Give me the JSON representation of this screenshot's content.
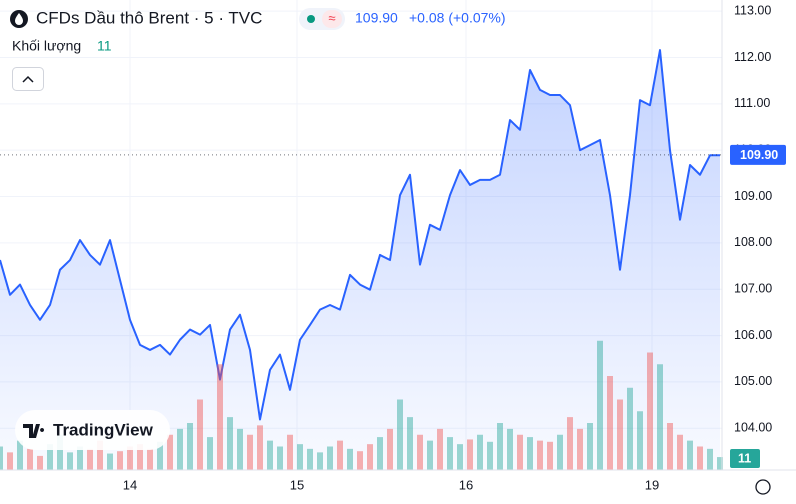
{
  "chart_data": {
    "type": "line",
    "title": "CFDs Dầu thô Brent · 5 · TVC",
    "change": "+0.08 (+0.07%)",
    "last_price": {
      "value": 109.9,
      "label": "109.90"
    },
    "brand": "TradingView",
    "x": [
      0,
      1,
      2,
      3,
      4,
      5,
      6,
      7,
      8,
      9,
      10,
      11,
      12,
      13,
      14,
      15,
      16,
      17,
      18,
      19,
      20,
      21,
      22,
      23,
      24,
      25,
      26,
      27,
      28,
      29,
      30,
      31,
      32,
      33,
      34,
      35,
      36,
      37,
      38,
      39,
      40,
      41,
      42,
      43,
      44,
      45,
      46,
      47,
      48,
      49,
      50,
      51,
      52,
      53,
      54,
      55,
      56,
      57,
      58,
      59,
      60,
      61,
      62,
      63,
      64,
      65,
      66,
      67,
      68,
      69,
      70,
      71,
      72
    ],
    "series": [
      {
        "name": "CFDs Dầu thô Brent",
        "color": "#2962ff",
        "values": [
          107.63,
          106.88,
          107.1,
          106.66,
          106.34,
          106.66,
          107.42,
          107.63,
          108.06,
          107.74,
          107.53,
          108.06,
          107.2,
          106.34,
          105.8,
          105.69,
          105.8,
          105.59,
          105.91,
          106.13,
          106.02,
          106.23,
          105.05,
          106.13,
          106.45,
          105.69,
          104.19,
          105.26,
          105.59,
          104.83,
          105.91,
          106.23,
          106.56,
          106.66,
          106.56,
          107.31,
          107.1,
          106.99,
          107.74,
          107.63,
          109.03,
          109.47,
          107.53,
          108.39,
          108.28,
          109.03,
          109.57,
          109.25,
          109.36,
          109.36,
          109.47,
          110.65,
          110.44,
          111.73,
          111.3,
          111.19,
          111.19,
          110.97,
          110.0,
          110.11,
          110.22,
          109.03,
          107.42,
          109.03,
          111.08,
          110.97,
          112.16,
          110.0,
          108.5,
          109.68,
          109.47,
          109.89,
          109.89
        ]
      },
      {
        "name": "Khối lượng",
        "axis": "y2",
        "up_color": "#26a69a",
        "down_color": "#ef5350",
        "values": [
          20,
          15,
          25,
          18,
          12,
          22,
          30,
          15,
          20,
          18,
          25,
          14,
          16,
          20,
          22,
          18,
          24,
          30,
          35,
          40,
          60,
          28,
          90,
          45,
          35,
          30,
          38,
          25,
          20,
          30,
          22,
          18,
          15,
          20,
          25,
          18,
          16,
          22,
          28,
          35,
          60,
          45,
          30,
          25,
          35,
          28,
          22,
          26,
          30,
          24,
          40,
          35,
          30,
          28,
          25,
          24,
          30,
          45,
          35,
          40,
          110,
          80,
          60,
          70,
          50,
          100,
          90,
          40,
          30,
          25,
          20,
          18,
          11
        ]
      }
    ],
    "xlim": [
      0,
      72.2
    ],
    "xticks": [
      {
        "value": 13,
        "label": "14"
      },
      {
        "value": 29.7,
        "label": "15"
      },
      {
        "value": 46.6,
        "label": "16"
      },
      {
        "value": 65.2,
        "label": "19"
      }
    ],
    "ylim": [
      103.1,
      113.24
    ],
    "yticks": [
      {
        "value": 104,
        "label": "104.00"
      },
      {
        "value": 105,
        "label": "105.00"
      },
      {
        "value": 106,
        "label": "106.00"
      },
      {
        "value": 107,
        "label": "107.00"
      },
      {
        "value": 108,
        "label": "108.00"
      },
      {
        "value": 109,
        "label": "109.00"
      },
      {
        "value": 110,
        "label": "110.00"
      },
      {
        "value": 111,
        "label": "111.00"
      },
      {
        "value": 112,
        "label": "112.00"
      },
      {
        "value": 113,
        "label": "113.00"
      }
    ],
    "y2lim": [
      0,
      400
    ]
  }
}
